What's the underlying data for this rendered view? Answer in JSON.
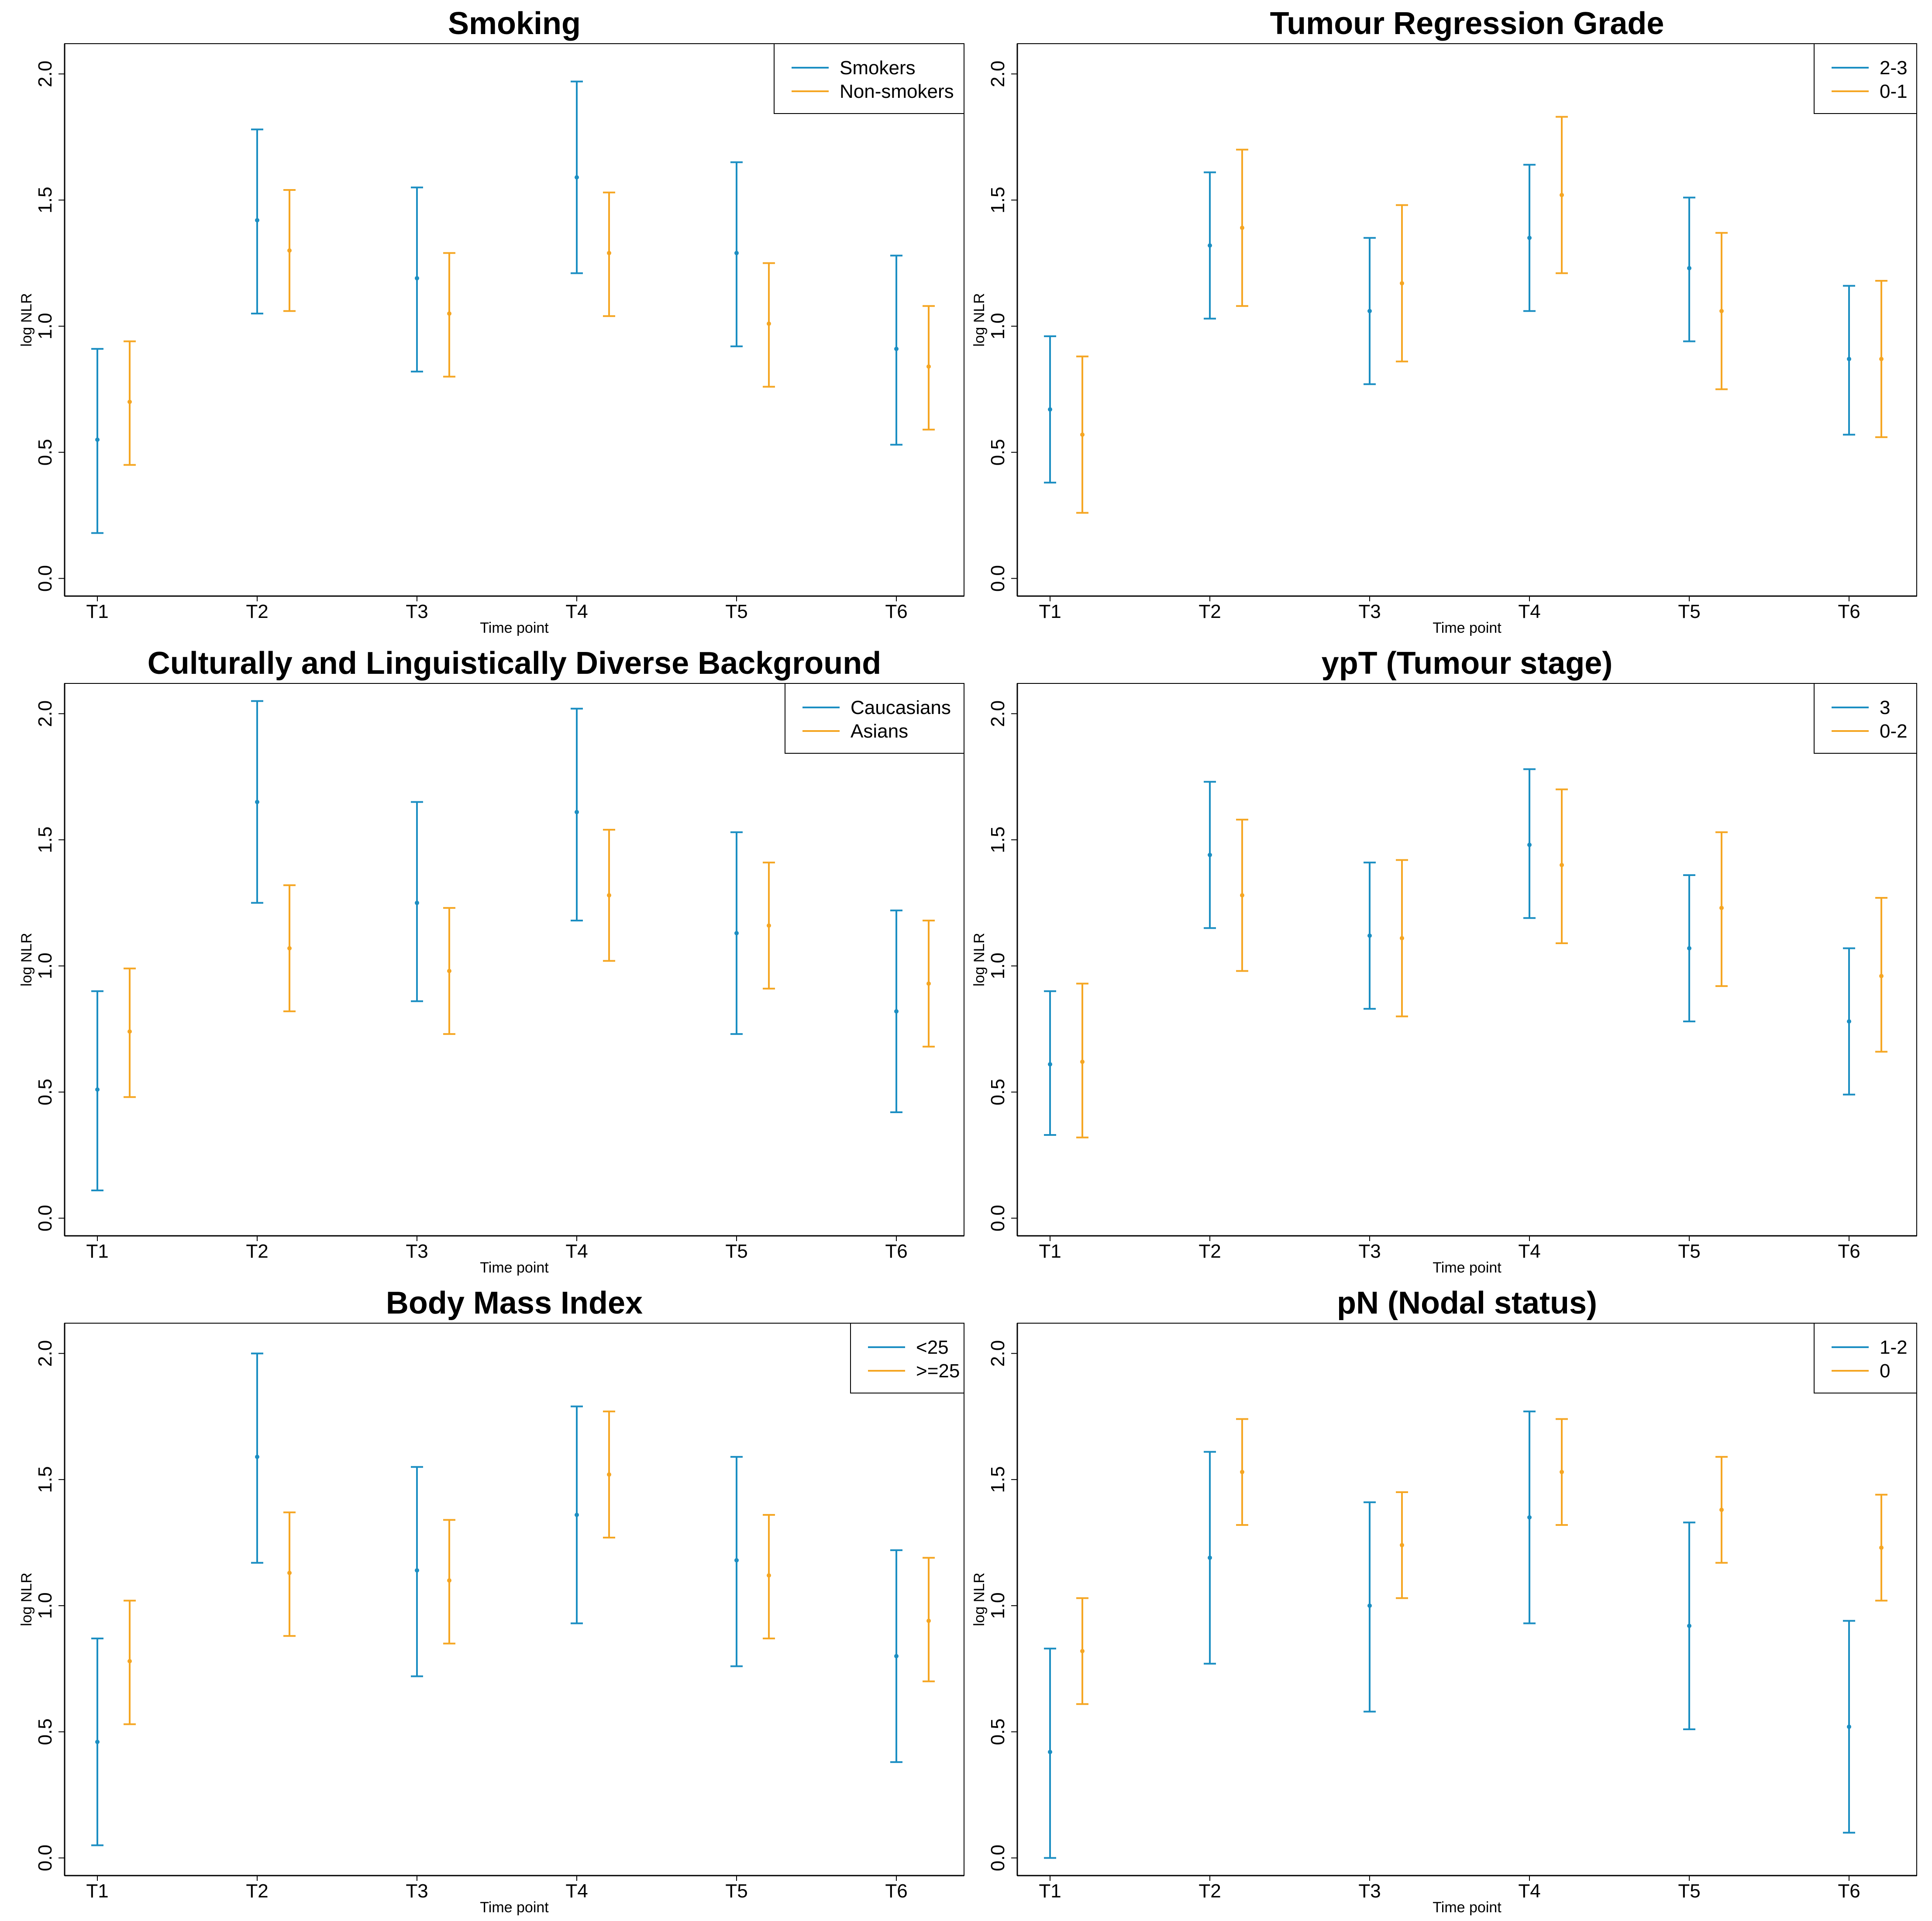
{
  "colors": {
    "series1": "#1b8ec2",
    "series2": "#f5a623",
    "axis": "#000000"
  },
  "chart_data": [
    {
      "type": "errorbar",
      "title": "Smoking",
      "xlabel": "Time point",
      "ylabel": "log NLR",
      "ylim": [
        -0.07,
        2.12
      ],
      "yticks": [
        "0.0",
        "0.5",
        "1.0",
        "1.5",
        "2.0"
      ],
      "categories": [
        "T1",
        "T2",
        "T3",
        "T4",
        "T5",
        "T6"
      ],
      "legend_position": "top-right",
      "series": [
        {
          "name": "Smokers",
          "mean": [
            0.55,
            1.42,
            1.19,
            1.59,
            1.29,
            0.91
          ],
          "lower": [
            0.18,
            1.05,
            0.82,
            1.21,
            0.92,
            0.53
          ],
          "upper": [
            0.91,
            1.78,
            1.55,
            1.97,
            1.65,
            1.28
          ]
        },
        {
          "name": "Non-smokers",
          "mean": [
            0.7,
            1.3,
            1.05,
            1.29,
            1.01,
            0.84
          ],
          "lower": [
            0.45,
            1.06,
            0.8,
            1.04,
            0.76,
            0.59
          ],
          "upper": [
            0.94,
            1.54,
            1.29,
            1.53,
            1.25,
            1.08
          ]
        }
      ]
    },
    {
      "type": "errorbar",
      "title": "Tumour Regression Grade",
      "xlabel": "Time point",
      "ylabel": "log NLR",
      "ylim": [
        -0.07,
        2.12
      ],
      "yticks": [
        "0.0",
        "0.5",
        "1.0",
        "1.5",
        "2.0"
      ],
      "categories": [
        "T1",
        "T2",
        "T3",
        "T4",
        "T5",
        "T6"
      ],
      "legend_position": "top-right",
      "series": [
        {
          "name": "2-3",
          "mean": [
            0.67,
            1.32,
            1.06,
            1.35,
            1.23,
            0.87
          ],
          "lower": [
            0.38,
            1.03,
            0.77,
            1.06,
            0.94,
            0.57
          ],
          "upper": [
            0.96,
            1.61,
            1.35,
            1.64,
            1.51,
            1.16
          ]
        },
        {
          "name": "0-1",
          "mean": [
            0.57,
            1.39,
            1.17,
            1.52,
            1.06,
            0.87
          ],
          "lower": [
            0.26,
            1.08,
            0.86,
            1.21,
            0.75,
            0.56
          ],
          "upper": [
            0.88,
            1.7,
            1.48,
            1.83,
            1.37,
            1.18
          ]
        }
      ]
    },
    {
      "type": "errorbar",
      "title": "Culturally and Linguistically Diverse Background",
      "xlabel": "Time point",
      "ylabel": "log NLR",
      "ylim": [
        -0.07,
        2.12
      ],
      "yticks": [
        "0.0",
        "0.5",
        "1.0",
        "1.5",
        "2.0"
      ],
      "categories": [
        "T1",
        "T2",
        "T3",
        "T4",
        "T5",
        "T6"
      ],
      "legend_position": "top-right",
      "series": [
        {
          "name": "Caucasians",
          "mean": [
            0.51,
            1.65,
            1.25,
            1.61,
            1.13,
            0.82
          ],
          "lower": [
            0.11,
            1.25,
            0.86,
            1.18,
            0.73,
            0.42
          ],
          "upper": [
            0.9,
            2.05,
            1.65,
            2.02,
            1.53,
            1.22
          ]
        },
        {
          "name": "Asians",
          "mean": [
            0.74,
            1.07,
            0.98,
            1.28,
            1.16,
            0.93
          ],
          "lower": [
            0.48,
            0.82,
            0.73,
            1.02,
            0.91,
            0.68
          ],
          "upper": [
            0.99,
            1.32,
            1.23,
            1.54,
            1.41,
            1.18
          ]
        }
      ]
    },
    {
      "type": "errorbar",
      "title": "ypT (Tumour stage)",
      "xlabel": "Time point",
      "ylabel": "log NLR",
      "ylim": [
        -0.07,
        2.12
      ],
      "yticks": [
        "0.0",
        "0.5",
        "1.0",
        "1.5",
        "2.0"
      ],
      "categories": [
        "T1",
        "T2",
        "T3",
        "T4",
        "T5",
        "T6"
      ],
      "legend_position": "top-right",
      "series": [
        {
          "name": "3",
          "mean": [
            0.61,
            1.44,
            1.12,
            1.48,
            1.07,
            0.78
          ],
          "lower": [
            0.33,
            1.15,
            0.83,
            1.19,
            0.78,
            0.49
          ],
          "upper": [
            0.9,
            1.73,
            1.41,
            1.78,
            1.36,
            1.07
          ]
        },
        {
          "name": "0-2",
          "mean": [
            0.62,
            1.28,
            1.11,
            1.4,
            1.23,
            0.96
          ],
          "lower": [
            0.32,
            0.98,
            0.8,
            1.09,
            0.92,
            0.66
          ],
          "upper": [
            0.93,
            1.58,
            1.42,
            1.7,
            1.53,
            1.27
          ]
        }
      ]
    },
    {
      "type": "errorbar",
      "title": "Body Mass Index",
      "xlabel": "Time point",
      "ylabel": "log NLR",
      "ylim": [
        -0.07,
        2.12
      ],
      "yticks": [
        "0.0",
        "0.5",
        "1.0",
        "1.5",
        "2.0"
      ],
      "categories": [
        "T1",
        "T2",
        "T3",
        "T4",
        "T5",
        "T6"
      ],
      "legend_position": "top-right",
      "series": [
        {
          "name": "<25",
          "mean": [
            0.46,
            1.59,
            1.14,
            1.36,
            1.18,
            0.8
          ],
          "lower": [
            0.05,
            1.17,
            0.72,
            0.93,
            0.76,
            0.38
          ],
          "upper": [
            0.87,
            2.0,
            1.55,
            1.79,
            1.59,
            1.22
          ]
        },
        {
          "name": ">=25",
          "mean": [
            0.78,
            1.13,
            1.1,
            1.52,
            1.12,
            0.94
          ],
          "lower": [
            0.53,
            0.88,
            0.85,
            1.27,
            0.87,
            0.7
          ],
          "upper": [
            1.02,
            1.37,
            1.34,
            1.77,
            1.36,
            1.19
          ]
        }
      ]
    },
    {
      "type": "errorbar",
      "title": "pN (Nodal status)",
      "xlabel": "Time point",
      "ylabel": "log NLR",
      "ylim": [
        -0.07,
        2.12
      ],
      "yticks": [
        "0.0",
        "0.5",
        "1.0",
        "1.5",
        "2.0"
      ],
      "categories": [
        "T1",
        "T2",
        "T3",
        "T4",
        "T5",
        "T6"
      ],
      "legend_position": "top-right",
      "series": [
        {
          "name": "1-2",
          "mean": [
            0.42,
            1.19,
            1.0,
            1.35,
            0.92,
            0.52
          ],
          "lower": [
            0.0,
            0.77,
            0.58,
            0.93,
            0.51,
            0.1
          ],
          "upper": [
            0.83,
            1.61,
            1.41,
            1.77,
            1.33,
            0.94
          ]
        },
        {
          "name": "0",
          "mean": [
            0.82,
            1.53,
            1.24,
            1.53,
            1.38,
            1.23
          ],
          "lower": [
            0.61,
            1.32,
            1.03,
            1.32,
            1.17,
            1.02
          ],
          "upper": [
            1.03,
            1.74,
            1.45,
            1.74,
            1.59,
            1.44
          ]
        }
      ]
    }
  ]
}
